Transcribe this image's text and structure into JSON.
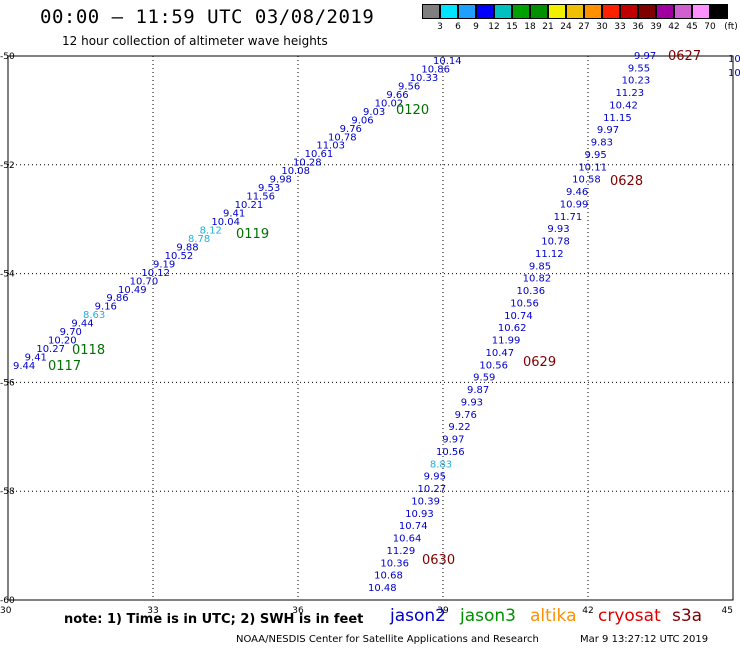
{
  "header": {
    "title": "00:00 – 11:59 UTC 03/08/2019",
    "subtitle": "12 hour collection of altimeter wave heights"
  },
  "colorbar": {
    "unit_label": "(ft)",
    "labels": [
      "3",
      "6",
      "9",
      "12",
      "15",
      "18",
      "21",
      "24",
      "27",
      "30",
      "33",
      "36",
      "39",
      "42",
      "45",
      "70"
    ],
    "colors": [
      "#7f7f7f",
      "#00e5ff",
      "#1ea0ff",
      "#0000ff",
      "#00c0c0",
      "#00a000",
      "#009000",
      "#f0f000",
      "#f0c000",
      "#ff9000",
      "#ff2000",
      "#c00000",
      "#800000",
      "#a000a0",
      "#d060d0",
      "#ff90ff",
      "#000000"
    ]
  },
  "axes": {
    "x_ticks": [
      "30",
      "33",
      "36",
      "39",
      "42",
      "45"
    ],
    "y_ticks": [
      "-50",
      "-52",
      "-54",
      "-56",
      "-58",
      "-60"
    ]
  },
  "passes": [
    {
      "label": "0117",
      "color": "#007000"
    },
    {
      "label": "0118",
      "color": "#007000"
    },
    {
      "label": "0119",
      "color": "#007000"
    },
    {
      "label": "0120",
      "color": "#007000"
    },
    {
      "label": "0627",
      "color": "#800000"
    },
    {
      "label": "0628",
      "color": "#800000"
    },
    {
      "label": "0629",
      "color": "#800000"
    },
    {
      "label": "0630",
      "color": "#800000"
    }
  ],
  "track1_values": [
    "9.44",
    "9.41",
    "10.27",
    "10.20",
    "9.70",
    "9.44",
    "8.63",
    "9.16",
    "9.86",
    "10.49",
    "10.70",
    "10.12",
    "9.19",
    "10.52",
    "9.88",
    "8.78",
    "8.12",
    "10.04",
    "9.41",
    "10.21",
    "11.56",
    "9.53",
    "9.98",
    "10.08",
    "10.28",
    "10.61",
    "11.03",
    "10.78",
    "9.76",
    "9.06",
    "9.03",
    "10.02",
    "9.66",
    "9.56",
    "10.33",
    "10.86",
    "10.14"
  ],
  "track1_cyan": [
    "8.63",
    "8.78",
    "8.12"
  ],
  "track2_values": [
    "9.97",
    "9.55",
    "10.23",
    "11.23",
    "10.42",
    "11.15",
    "9.97",
    "9.83",
    "9.95",
    "10.11",
    "10.58",
    "9.46",
    "10.99",
    "11.71",
    "9.93",
    "10.78",
    "11.12",
    "9.85",
    "10.82",
    "10.36",
    "10.56",
    "10.74",
    "10.62",
    "11.99",
    "10.47",
    "10.56",
    "9.59",
    "9.87",
    "9.93",
    "9.76",
    "9.22",
    "9.97",
    "10.56",
    "8.83",
    "9.95",
    "10.27",
    "10.39",
    "10.93",
    "10.74",
    "10.64",
    "11.29",
    "10.36",
    "10.68",
    "10.48"
  ],
  "track2_cyan": [
    "8.83"
  ],
  "edge_values": [
    "10",
    "10"
  ],
  "footer": {
    "note": "note:  1) Time is in UTC;  2) SWH is in feet",
    "satellites": [
      {
        "name": "jason2",
        "color": "#0000cc"
      },
      {
        "name": "jason3",
        "color": "#009000"
      },
      {
        "name": "altika",
        "color": "#ff9000"
      },
      {
        "name": "cryosat",
        "color": "#e00000"
      },
      {
        "name": "s3a",
        "color": "#800000"
      }
    ],
    "credit": "NOAA/NESDIS Center for Satellite Applications and Research",
    "timestamp": "Mar  9 13:27:12 UTC 2019"
  }
}
